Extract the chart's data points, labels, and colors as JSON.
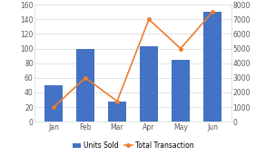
{
  "categories": [
    "Jan",
    "Feb",
    "Mar",
    "Apr",
    "May",
    "Jun"
  ],
  "units_sold": [
    50,
    100,
    28,
    103,
    85,
    150
  ],
  "total_transaction": [
    1000,
    3000,
    1400,
    7000,
    5000,
    7500
  ],
  "bar_color": "#4472C4",
  "line_color": "#ED7D31",
  "left_ylim": [
    0,
    160
  ],
  "right_ylim": [
    0,
    8000
  ],
  "left_yticks": [
    0,
    20,
    40,
    60,
    80,
    100,
    120,
    140,
    160
  ],
  "right_yticks": [
    0,
    1000,
    2000,
    3000,
    4000,
    5000,
    6000,
    7000,
    8000
  ],
  "legend_labels": [
    "Units Sold",
    "Total Transaction"
  ],
  "background_color": "#ffffff",
  "grid_color": "#d6d6d6",
  "tick_fontsize": 5.5,
  "legend_fontsize": 5.5,
  "bar_width": 0.55
}
